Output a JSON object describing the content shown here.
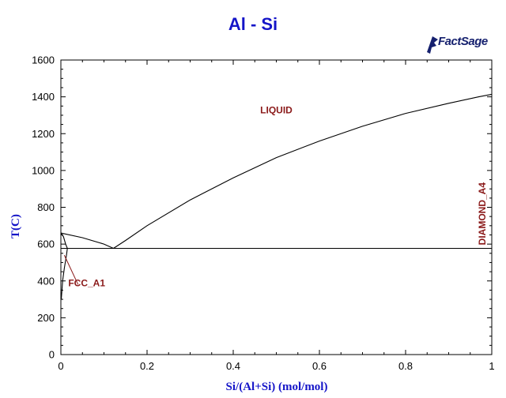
{
  "chart_data": {
    "type": "line",
    "title": "Al - Si",
    "xlabel": "Si/(Al+Si) (mol/mol)",
    "ylabel": "T(C)",
    "xlim": [
      0,
      1
    ],
    "ylim": [
      0,
      1600
    ],
    "x_ticks": [
      0,
      0.2,
      0.4,
      0.6,
      0.8,
      1
    ],
    "x_tick_labels": [
      "0",
      "0.2",
      "0.4",
      "0.6",
      "0.8",
      "1"
    ],
    "y_ticks": [
      0,
      200,
      400,
      600,
      800,
      1000,
      1200,
      1400,
      1600
    ],
    "y_tick_labels": [
      "0",
      "200",
      "400",
      "600",
      "800",
      "1000",
      "1200",
      "1400",
      "1600"
    ],
    "grid": false,
    "legend": "none",
    "series": [
      {
        "values": [
          [
            0,
            660
          ],
          [
            0.05,
            635
          ],
          [
            0.1,
            600
          ],
          [
            0.122,
            577
          ]
        ]
      },
      {
        "values": [
          [
            0.122,
            577
          ],
          [
            0.15,
            620
          ],
          [
            0.2,
            700
          ],
          [
            0.3,
            840
          ],
          [
            0.4,
            960
          ],
          [
            0.5,
            1070
          ],
          [
            0.6,
            1160
          ],
          [
            0.7,
            1240
          ],
          [
            0.8,
            1310
          ],
          [
            0.9,
            1365
          ],
          [
            0.97,
            1400
          ],
          [
            1.0,
            1414
          ]
        ]
      },
      {
        "values": [
          [
            0,
            577
          ],
          [
            1,
            577
          ]
        ]
      },
      {
        "values": [
          [
            0,
            660
          ],
          [
            0.006,
            640
          ],
          [
            0.011,
            600
          ],
          [
            0.015,
            577
          ]
        ]
      },
      {
        "values": [
          [
            0.015,
            577
          ],
          [
            0.013,
            540
          ],
          [
            0.008,
            470
          ],
          [
            0.004,
            400
          ],
          [
            0.001,
            300
          ]
        ]
      }
    ],
    "annotations": [
      {
        "text": "LIQUID",
        "x": 0.5,
        "y": 1310
      },
      {
        "text": "FCC_A1",
        "x": 0.06,
        "y": 370
      },
      {
        "text": "DIAMOND_A4",
        "x": 0.985,
        "y": 765,
        "rotation": -90
      }
    ],
    "pointer_line": {
      "from": [
        0.04,
        380
      ],
      "to": [
        0.008,
        540
      ]
    }
  },
  "logo": {
    "text": "FactSage",
    "mark": "F"
  }
}
